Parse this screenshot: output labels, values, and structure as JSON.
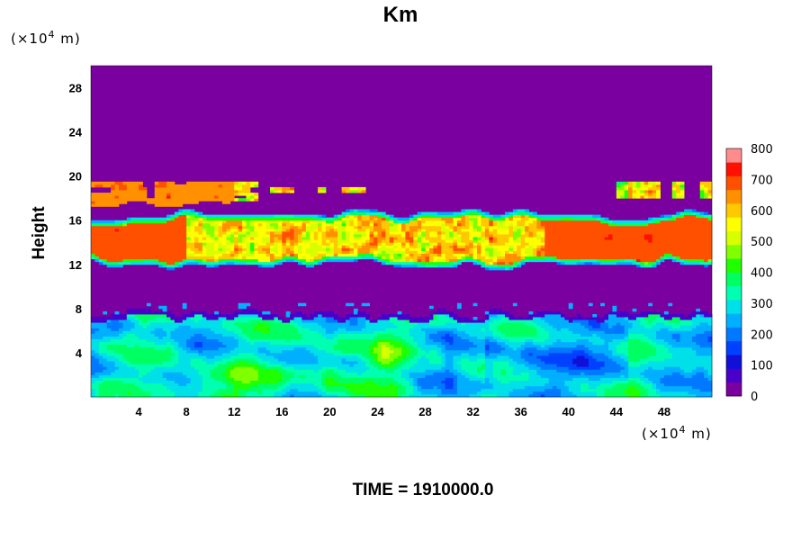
{
  "chart_data": {
    "type": "heatmap",
    "title": "Km",
    "ylabel": "Height",
    "y_unit_label": "(×10",
    "y_unit_exp": "4",
    "y_unit_tail": " m)",
    "x_unit_label": "(×10",
    "x_unit_exp": "4",
    "x_unit_tail": " m)",
    "footer": "TIME = 1910000.0",
    "xlim": [
      0,
      52
    ],
    "ylim": [
      0,
      30
    ],
    "x_ticks": [
      4,
      8,
      12,
      16,
      20,
      24,
      28,
      32,
      36,
      40,
      44,
      48
    ],
    "y_ticks": [
      4,
      8,
      12,
      16,
      20,
      24,
      28
    ],
    "colorbar": {
      "ticks": [
        0,
        100,
        200,
        300,
        400,
        500,
        600,
        700,
        800
      ],
      "range": [
        0,
        800
      ],
      "colors": [
        "#7b00a0",
        "#4a00c8",
        "#1010d8",
        "#0040ff",
        "#0078ff",
        "#00b0ff",
        "#00e0e8",
        "#00ffb0",
        "#00ff60",
        "#20ff00",
        "#80ff00",
        "#d8ff00",
        "#ffff00",
        "#ffc800",
        "#ff9000",
        "#ff5000",
        "#ff1000",
        "#ff8c8c"
      ]
    },
    "fields": {
      "upper_layer": {
        "y_range": [
          12,
          16.5
        ],
        "value_range": [
          400,
          800
        ]
      },
      "thin_layer": {
        "y_range": [
          17.5,
          19.5
        ],
        "value_range": [
          300,
          800
        ]
      },
      "boundary_layer": {
        "y_range": [
          0,
          7.5
        ],
        "value_range": [
          120,
          450
        ]
      },
      "background": {
        "value": 0
      }
    }
  }
}
